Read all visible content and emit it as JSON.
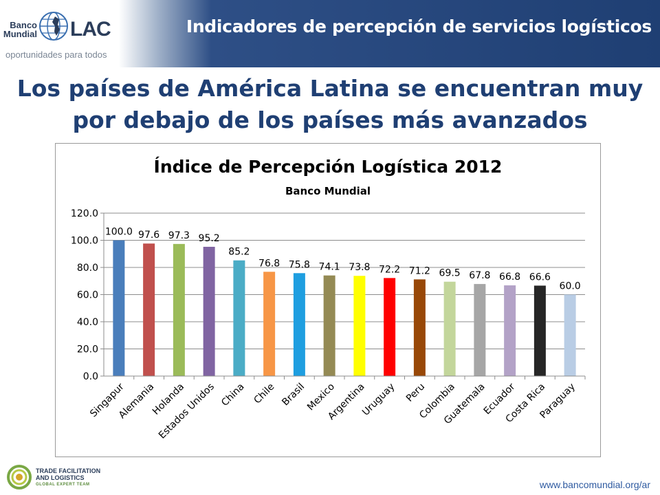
{
  "header": {
    "title": "Indicadores de percepción de servicios logísticos",
    "logo_text_left_1": "Banco",
    "logo_text_left_2": "Mundial",
    "logo_text_right": "LAC",
    "logo_tagline": "oportunidades para todos"
  },
  "subtitle_line1": "Los países de América Latina se encuentran muy",
  "subtitle_line2": "por debajo de los países más avanzados",
  "chart_data": {
    "type": "bar",
    "title": "Índice de Percepción Logística 2012",
    "subtitle": "Banco Mundial",
    "categories": [
      "Singapur",
      "Alemania",
      "Holanda",
      "Estados Unidos",
      "China",
      "Chile",
      "Brasil",
      "Mexico",
      "Argentina",
      "Uruguay",
      "Peru",
      "Colombia",
      "Guatemala",
      "Ecuador",
      "Costa Rica",
      "Paraguay"
    ],
    "values": [
      100.0,
      97.6,
      97.3,
      95.2,
      85.2,
      76.8,
      75.8,
      74.1,
      73.8,
      72.2,
      71.2,
      69.5,
      67.8,
      66.8,
      66.6,
      60.0
    ],
    "value_labels": [
      "100.0",
      "97.6",
      "97.3",
      "95.2",
      "85.2",
      "76.8",
      "75.8",
      "74.1",
      "73.8",
      "72.2",
      "71.2",
      "69.5",
      "67.8",
      "66.8",
      "66.6",
      "60.0"
    ],
    "colors": [
      "#4a7ebb",
      "#c0504d",
      "#9bbb59",
      "#8064a2",
      "#4bacc6",
      "#f79646",
      "#1e9ee0",
      "#948a54",
      "#ffff00",
      "#ff0000",
      "#984807",
      "#c3d69b",
      "#a6a6a6",
      "#b3a2c7",
      "#262626",
      "#b9cde5"
    ],
    "ylim": [
      0,
      120
    ],
    "yticks": [
      "0.0",
      "20.0",
      "40.0",
      "60.0",
      "80.0",
      "100.0",
      "120.0"
    ],
    "grid": true,
    "legend": "none"
  },
  "footer": {
    "logo_line1": "TRADE FACILITATION",
    "logo_line2": "AND LOGISTICS",
    "logo_line3": "GLOBAL EXPERT TEAM",
    "url": "www.bancomundial.org/ar"
  }
}
